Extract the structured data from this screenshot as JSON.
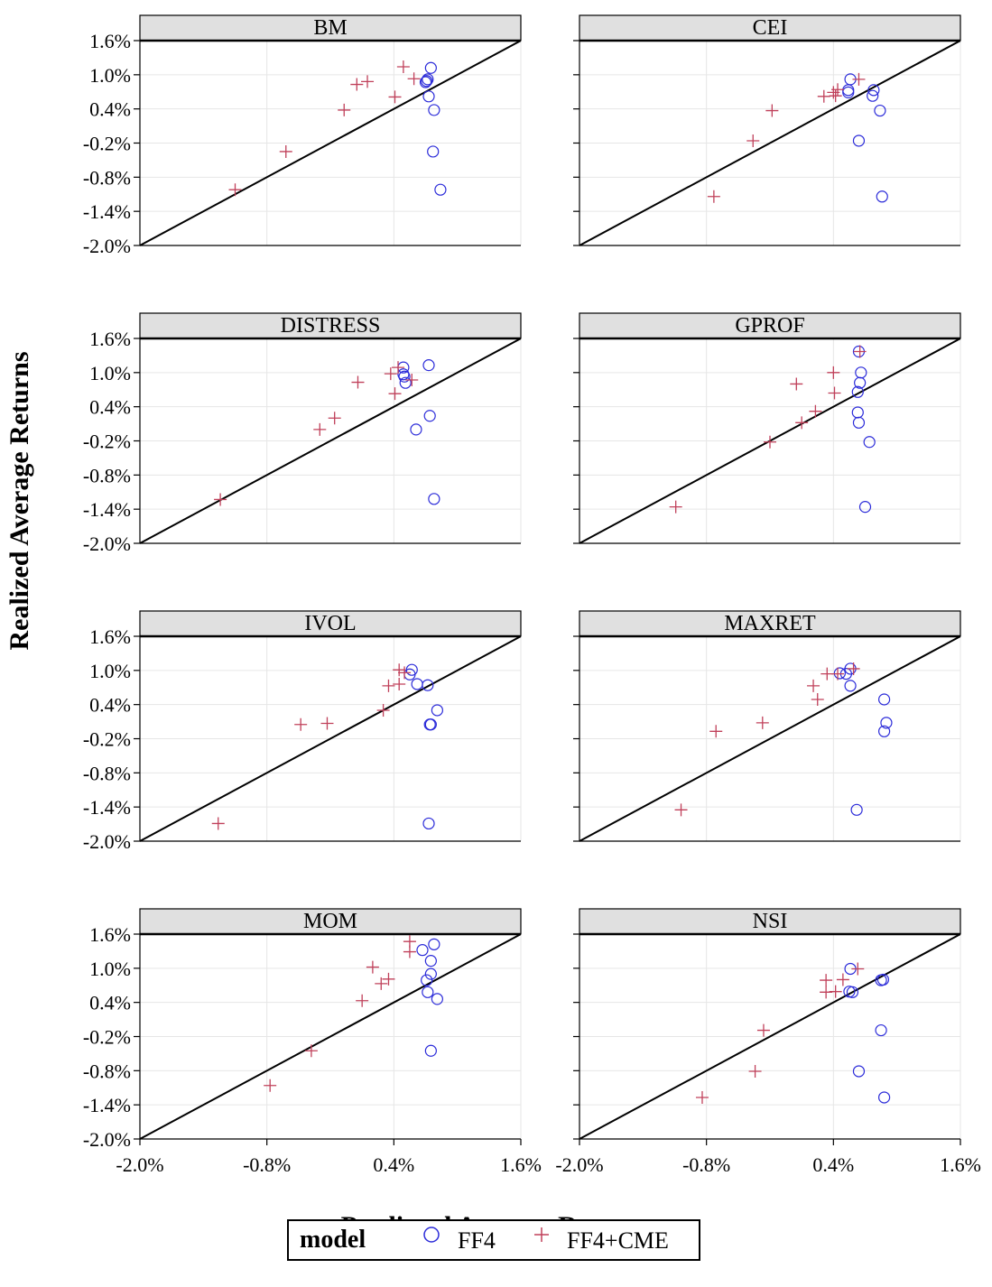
{
  "chart_data": {
    "type": "scatter",
    "xlabel": "Predicted Average Returns",
    "ylabel": "Realized Average Returns",
    "xlim": [
      -2.0,
      1.6
    ],
    "ylim": [
      -2.0,
      1.6
    ],
    "ticks": [
      "-2.0%",
      "-1.4%",
      "-0.8%",
      "-0.2%",
      "0.4%",
      "1.0%",
      "1.6%"
    ],
    "tick_values": [
      -2.0,
      -1.4,
      -0.8,
      -0.2,
      0.4,
      1.0,
      1.6
    ],
    "x_ticks": [
      "-2.0%",
      "-0.8%",
      "0.4%",
      "1.6%"
    ],
    "x_tick_values": [
      -2.0,
      -0.8,
      0.4,
      1.6
    ],
    "legend": {
      "title": "model",
      "entries": [
        "FF4",
        "FF4+CME"
      ],
      "position": "bottom"
    },
    "colors": {
      "FF4": "#2b2bd9",
      "FF4+CME": "#c0405a",
      "strip": "#e0e0e0",
      "grid": "#e6e6e6"
    },
    "panels": [
      {
        "name": "BM",
        "series": [
          {
            "name": "FF4",
            "x": [
              0.75,
              0.72,
              0.7,
              0.71,
              0.73,
              0.78,
              0.77,
              0.84
            ],
            "y": [
              1.12,
              0.92,
              0.87,
              0.89,
              0.62,
              0.38,
              -0.35,
              -1.02
            ]
          },
          {
            "name": "FF4+CME",
            "x": [
              0.49,
              0.59,
              0.15,
              0.05,
              0.41,
              -0.07,
              -0.62,
              -1.1
            ],
            "y": [
              1.14,
              0.93,
              0.88,
              0.83,
              0.61,
              0.38,
              -0.35,
              -1.02
            ]
          }
        ]
      },
      {
        "name": "CEI",
        "series": [
          {
            "name": "FF4",
            "x": [
              0.56,
              0.54,
              0.78,
              0.54,
              0.77,
              0.84,
              0.64,
              0.86
            ],
            "y": [
              0.92,
              0.73,
              0.73,
              0.69,
              0.63,
              0.37,
              -0.16,
              -1.14
            ]
          },
          {
            "name": "FF4+CME",
            "x": [
              0.64,
              0.44,
              0.4,
              0.42,
              0.31,
              -0.18,
              -0.36,
              -0.73
            ],
            "y": [
              0.92,
              0.74,
              0.69,
              0.63,
              0.62,
              0.37,
              -0.16,
              -1.14
            ]
          }
        ]
      },
      {
        "name": "DISTRESS",
        "series": [
          {
            "name": "FF4",
            "x": [
              0.73,
              0.49,
              0.49,
              0.5,
              0.51,
              0.74,
              0.61,
              0.78
            ],
            "y": [
              1.13,
              1.09,
              0.97,
              0.93,
              0.82,
              0.24,
              0.0,
              -1.22
            ]
          },
          {
            "name": "FF4+CME",
            "x": [
              0.44,
              0.37,
              0.06,
              0.57,
              0.41,
              -0.16,
              -0.3,
              -1.24
            ],
            "y": [
              1.09,
              0.98,
              0.83,
              0.87,
              0.63,
              0.2,
              0.0,
              -1.23
            ]
          }
        ]
      },
      {
        "name": "GPROF",
        "series": [
          {
            "name": "FF4",
            "x": [
              0.64,
              0.66,
              0.65,
              0.63,
              0.63,
              0.64,
              0.74,
              0.7
            ],
            "y": [
              1.37,
              1.0,
              0.82,
              0.66,
              0.3,
              0.12,
              -0.22,
              -1.36
            ]
          },
          {
            "name": "FF4+CME",
            "x": [
              0.65,
              0.4,
              0.05,
              0.41,
              0.23,
              0.1,
              -0.2,
              -1.09
            ],
            "y": [
              1.37,
              1.0,
              0.8,
              0.64,
              0.32,
              0.12,
              -0.22,
              -1.36
            ]
          }
        ]
      },
      {
        "name": "IVOL",
        "series": [
          {
            "name": "FF4",
            "x": [
              0.57,
              0.55,
              0.62,
              0.72,
              0.81,
              0.74,
              0.75,
              0.73
            ],
            "y": [
              1.01,
              0.93,
              0.76,
              0.74,
              0.3,
              0.05,
              0.05,
              -1.69
            ]
          },
          {
            "name": "FF4+CME",
            "x": [
              0.45,
              0.5,
              0.45,
              0.35,
              0.3,
              -0.23,
              -0.48,
              -1.26
            ],
            "y": [
              1.01,
              0.96,
              0.76,
              0.73,
              0.3,
              0.07,
              0.05,
              -1.69
            ]
          }
        ]
      },
      {
        "name": "MAXRET",
        "series": [
          {
            "name": "FF4",
            "x": [
              0.56,
              0.46,
              0.52,
              0.56,
              0.88,
              0.9,
              0.88,
              0.62
            ],
            "y": [
              1.03,
              0.95,
              0.94,
              0.73,
              0.49,
              0.08,
              -0.07,
              -1.45
            ]
          },
          {
            "name": "FF4+CME",
            "x": [
              0.59,
              0.44,
              0.34,
              0.21,
              0.25,
              -0.27,
              -0.71,
              -1.04
            ],
            "y": [
              1.03,
              0.94,
              0.94,
              0.73,
              0.49,
              0.08,
              -0.07,
              -1.45
            ]
          }
        ]
      },
      {
        "name": "MOM",
        "series": [
          {
            "name": "FF4",
            "x": [
              0.78,
              0.67,
              0.75,
              0.75,
              0.71,
              0.72,
              0.81,
              0.75
            ],
            "y": [
              1.42,
              1.32,
              1.13,
              0.9,
              0.79,
              0.58,
              0.46,
              -0.45
            ]
          },
          {
            "name": "FF4+CME",
            "x": [
              0.55,
              0.55,
              0.2,
              0.35,
              0.28,
              0.1,
              -0.38,
              -0.77
            ],
            "y": [
              1.47,
              1.29,
              1.02,
              0.81,
              0.73,
              0.43,
              -0.45,
              -1.06
            ]
          }
        ]
      },
      {
        "name": "NSI",
        "series": [
          {
            "name": "FF4",
            "x": [
              0.56,
              0.85,
              0.87,
              0.55,
              0.58,
              0.85,
              0.64,
              0.88
            ],
            "y": [
              0.99,
              0.79,
              0.8,
              0.59,
              0.58,
              -0.09,
              -0.81,
              -1.27
            ]
          },
          {
            "name": "FF4+CME",
            "x": [
              0.63,
              0.33,
              0.49,
              0.33,
              0.42,
              -0.26,
              -0.34,
              -0.84
            ],
            "y": [
              0.99,
              0.79,
              0.8,
              0.58,
              0.59,
              -0.09,
              -0.81,
              -1.27
            ]
          }
        ]
      }
    ]
  }
}
